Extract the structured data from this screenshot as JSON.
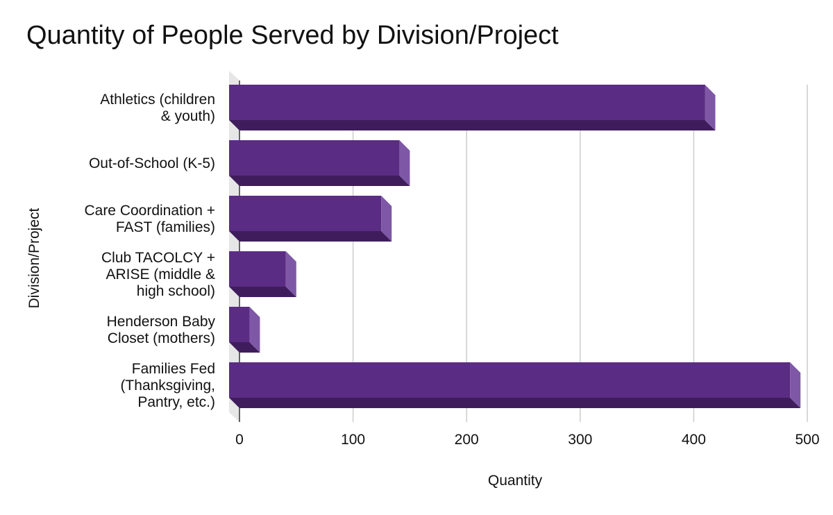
{
  "chart_data": {
    "type": "bar",
    "orientation": "horizontal",
    "title": "Quantity of People Served by Division/Project",
    "xlabel": "Quantity",
    "ylabel": "Division/Project",
    "xlim": [
      0,
      500
    ],
    "xticks": [
      0,
      100,
      200,
      300,
      400,
      500
    ],
    "grid": true,
    "categories": [
      [
        "Athletics (children",
        "& youth)"
      ],
      [
        "Out-of-School (K-5)"
      ],
      [
        "Care Coordination +",
        "FAST (families)"
      ],
      [
        "Club TACOLCY +",
        "ARISE (middle &",
        "high school)"
      ],
      [
        "Henderson Baby",
        "Closet (mothers)"
      ],
      [
        "Families Fed",
        "(Thanksgiving,",
        "Pantry, etc.)"
      ]
    ],
    "series": [
      {
        "name": "Quantity",
        "values": [
          419,
          150,
          134,
          50,
          18,
          494
        ]
      }
    ],
    "colors": {
      "bar_front": "#5b2c83",
      "bar_bottom": "#3f1d5c",
      "bar_side": "#7e58a6",
      "grid": "#cccccc",
      "wall": "#e6e6e6",
      "axis": "#333333"
    }
  }
}
